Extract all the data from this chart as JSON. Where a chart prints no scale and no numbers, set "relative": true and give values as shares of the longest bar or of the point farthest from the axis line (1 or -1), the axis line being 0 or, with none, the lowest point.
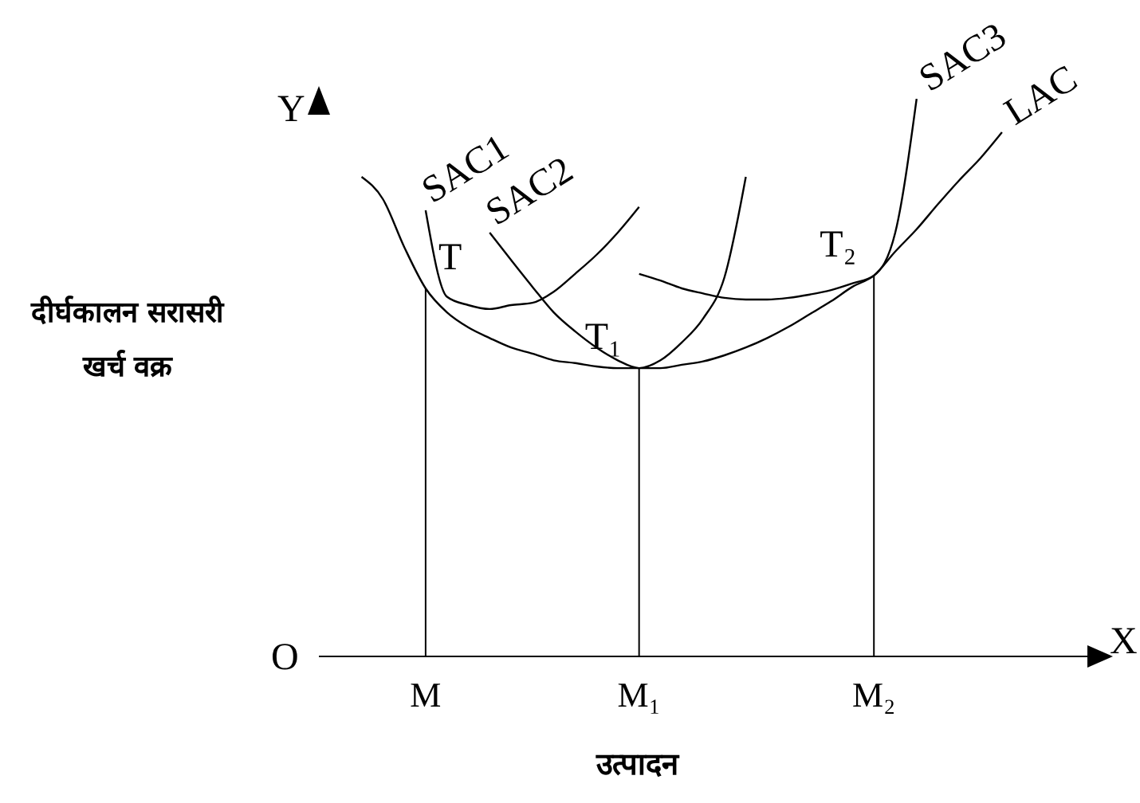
{
  "chart_data": {
    "type": "line",
    "relative": true,
    "xlabel": "उत्पादन",
    "ylabel": "दीर्घकालन सरासरी खर्च वक्र",
    "categories": [
      null,
      null,
      null,
      null,
      null,
      "M",
      null,
      null,
      null,
      null,
      null,
      null,
      null,
      null,
      null,
      "M₁",
      null,
      null,
      null,
      null,
      null,
      null,
      null,
      null,
      null,
      null,
      "M₂",
      null,
      null,
      null,
      null,
      null,
      null,
      null,
      null,
      null,
      null
    ],
    "series": [
      {
        "name": "SAC1",
        "color": "#000000",
        "values": [
          null,
          null,
          null,
          null,
          null,
          0.8,
          0.645,
          0.63,
          0.623,
          0.63,
          0.634,
          0.654,
          0.686,
          0.72,
          0.76,
          0.806,
          null,
          null,
          null,
          null,
          null,
          null,
          null,
          null,
          null,
          null,
          null,
          null,
          null,
          null,
          null,
          null,
          null,
          null,
          null,
          null,
          null
        ]
      },
      {
        "name": "SAC2",
        "color": "#000000",
        "values": [
          null,
          null,
          null,
          null,
          null,
          null,
          null,
          null,
          0.76,
          0.711,
          0.663,
          0.617,
          0.583,
          0.554,
          0.531,
          0.517,
          0.531,
          0.563,
          0.606,
          0.68,
          0.86,
          null,
          null,
          null,
          null,
          null,
          null,
          null,
          null,
          null,
          null,
          null,
          null,
          null,
          null,
          null,
          null
        ]
      },
      {
        "name": "SAC3",
        "color": "#000000",
        "values": [
          null,
          null,
          null,
          null,
          null,
          null,
          null,
          null,
          null,
          null,
          null,
          null,
          null,
          null,
          null,
          0.686,
          0.674,
          0.66,
          0.651,
          0.643,
          0.64,
          0.64,
          0.643,
          0.649,
          0.657,
          0.669,
          0.683,
          0.76,
          1,
          null,
          null,
          null,
          null,
          null,
          null,
          null,
          null
        ]
      },
      {
        "name": "LAC",
        "color": "#000000",
        "values": [
          null,
          null,
          0.86,
          0.82,
          0.734,
          0.66,
          0.617,
          0.59,
          0.571,
          0.554,
          0.543,
          0.531,
          0.526,
          0.52,
          0.517,
          0.517,
          0.517,
          0.523,
          0.529,
          0.54,
          0.554,
          0.571,
          0.591,
          0.614,
          0.637,
          0.663,
          0.683,
          0.726,
          0.766,
          0.811,
          0.854,
          0.894,
          0.94,
          null,
          null,
          null,
          null
        ]
      }
    ],
    "ref_lines": [
      {
        "axis": "x",
        "value": "M",
        "color": "#000000"
      },
      {
        "axis": "x",
        "value": "M₁",
        "color": "#000000"
      },
      {
        "axis": "x",
        "value": "M₂",
        "color": "#000000"
      }
    ],
    "annotations": [
      {
        "text": "T",
        "x": "M",
        "y": 0.66
      },
      {
        "text": "T₁",
        "x": "M₁",
        "y": 0.517
      },
      {
        "text": "T₂",
        "x": "M₂",
        "y": 0.683
      },
      "O",
      "X",
      "Y"
    ],
    "grid": false,
    "legend": false,
    "marker": "none",
    "line_style": "solid"
  }
}
